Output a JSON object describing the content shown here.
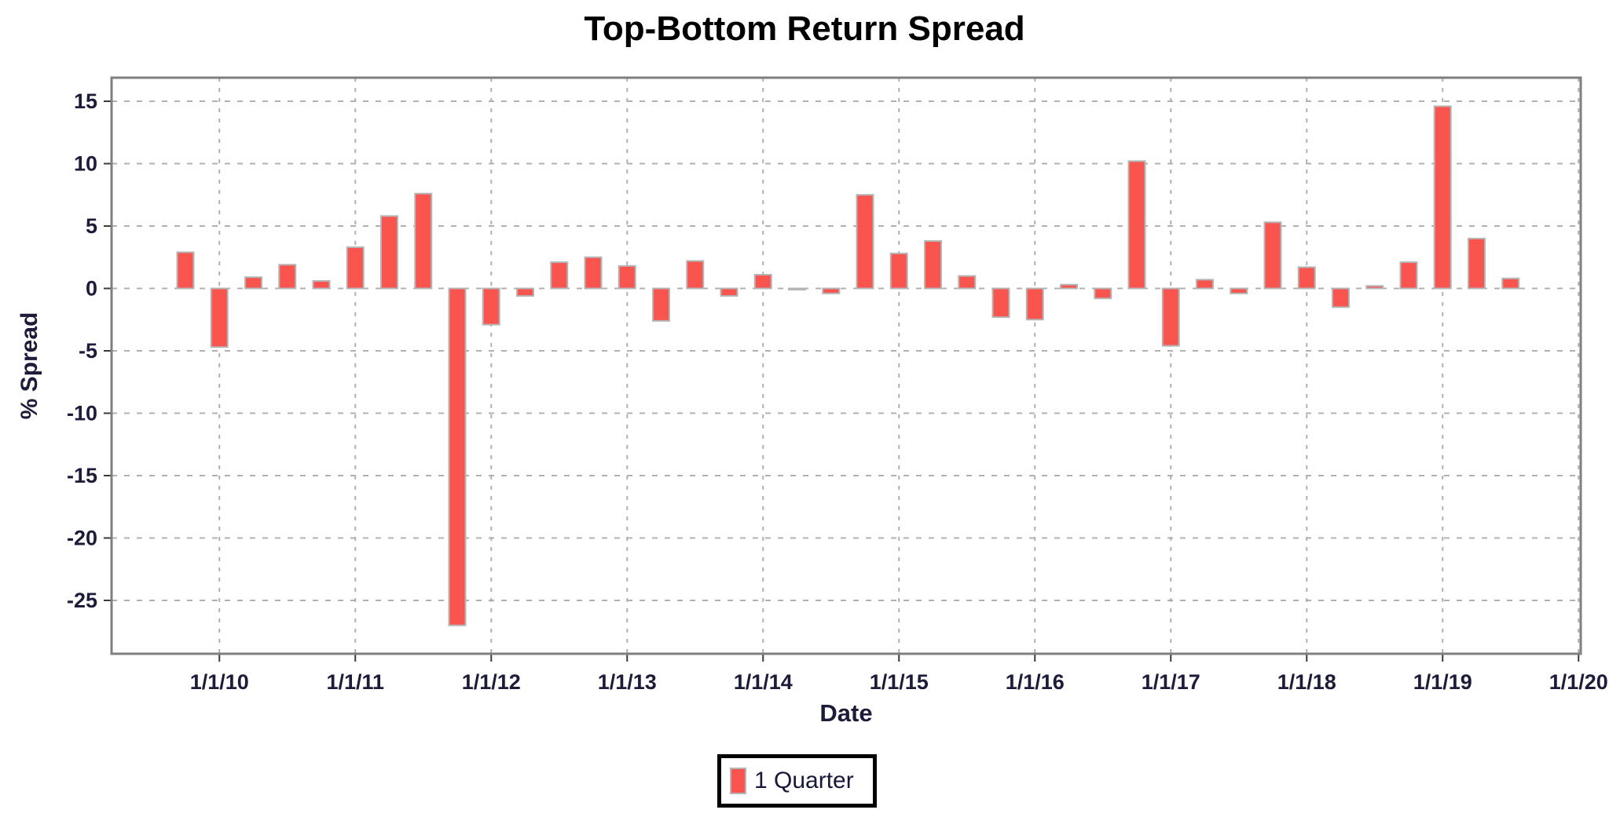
{
  "title": "Top-Bottom Return Spread",
  "axes": {
    "x_label": "Date",
    "y_label": "% Spread"
  },
  "legend": {
    "label": "1 Quarter",
    "position": "bottom-center"
  },
  "colors": {
    "bar_fill": "#fa544e",
    "bar_border": "#b5b5b5",
    "grid": "#b0b0b0",
    "plot_border": "#7f7f7f",
    "tick_mark": "#3a3a3a",
    "tick_text": "#1c1c3a",
    "title_text": "#000000",
    "background": "#ffffff"
  },
  "chart_data": {
    "type": "bar",
    "title": "Top-Bottom Return Spread",
    "xlabel": "Date",
    "ylabel": "% Spread",
    "series_name": "1 Quarter",
    "grid": "dashed",
    "legend_position": "bottom-center",
    "ylim": [
      -29.3,
      16.9
    ],
    "y_ticks": [
      15,
      10,
      5,
      0,
      -5,
      -10,
      -15,
      -20,
      -25
    ],
    "x_tick_labels": [
      "1/1/10",
      "1/1/11",
      "1/1/12",
      "1/1/13",
      "1/1/14",
      "1/1/15",
      "1/1/16",
      "1/1/17",
      "1/1/18",
      "1/1/19",
      "1/1/20"
    ],
    "x": [
      "10/1/09",
      "1/1/10",
      "4/1/10",
      "7/1/10",
      "10/1/10",
      "1/1/11",
      "4/1/11",
      "7/1/11",
      "10/1/11",
      "1/1/12",
      "4/1/12",
      "7/1/12",
      "10/1/12",
      "1/1/13",
      "4/1/13",
      "7/1/13",
      "10/1/13",
      "1/1/14",
      "4/1/14",
      "7/1/14",
      "10/1/14",
      "1/1/15",
      "4/1/15",
      "7/1/15",
      "10/1/15",
      "1/1/16",
      "4/1/16",
      "7/1/16",
      "10/1/16",
      "1/1/17",
      "4/1/17",
      "7/1/17",
      "10/1/17",
      "1/1/18",
      "4/1/18",
      "7/1/18",
      "10/1/18",
      "1/1/19",
      "4/1/19",
      "7/1/19"
    ],
    "values": [
      2.9,
      -4.7,
      0.9,
      1.9,
      0.6,
      3.3,
      5.8,
      7.6,
      -27.0,
      -2.9,
      -0.6,
      2.1,
      2.5,
      1.8,
      -2.6,
      2.2,
      -0.6,
      1.1,
      -0.1,
      -0.4,
      7.5,
      2.8,
      3.8,
      1.0,
      -2.3,
      -2.5,
      0.3,
      -0.8,
      10.2,
      -4.6,
      0.7,
      -0.4,
      5.3,
      1.7,
      -1.5,
      0.2,
      2.1,
      14.6,
      4.0,
      0.8
    ]
  }
}
